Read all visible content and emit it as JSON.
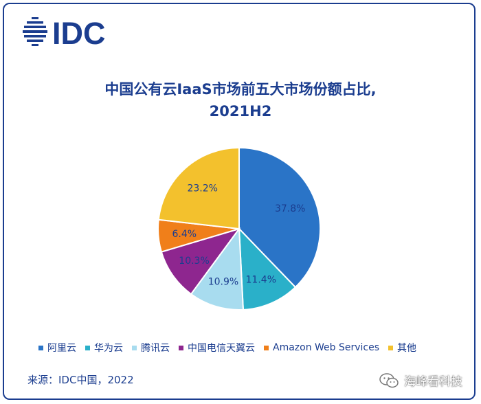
{
  "brand": {
    "logo_text": "IDC",
    "logo_icon": "idc-globe-icon",
    "color": "#1b3d8f"
  },
  "chart_data": {
    "type": "pie",
    "title_line1": "中国公有云IaaS市场前五大市场份额占比,",
    "title_line2": "2021H2",
    "start_angle_deg": 0,
    "direction": "clockwise",
    "legend_position": "bottom",
    "slices": [
      {
        "name": "阿里云",
        "value": 37.8,
        "label": "37.8%",
        "color": "#2a74c7"
      },
      {
        "name": "华为云",
        "value": 11.4,
        "label": "11.4%",
        "color": "#2ab0c9"
      },
      {
        "name": "腾讯云",
        "value": 10.9,
        "label": "10.9%",
        "color": "#a8dcef"
      },
      {
        "name": "中国电信天翼云",
        "value": 10.3,
        "label": "10.3%",
        "color": "#8e268f"
      },
      {
        "name": "Amazon Web Services",
        "value": 6.4,
        "label": "6.4%",
        "color": "#f07f1a"
      },
      {
        "name": "其他",
        "value": 23.2,
        "label": "23.2%",
        "color": "#f3c12d"
      }
    ]
  },
  "source": "来源：IDC中国，2022",
  "watermark": {
    "text": "海峰看科技",
    "icon": "wechat-icon"
  }
}
